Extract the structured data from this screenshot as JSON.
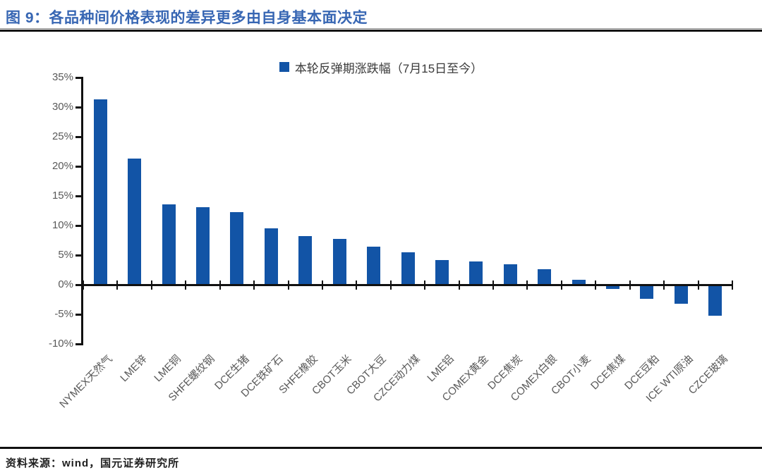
{
  "header": {
    "title": "图 9：各品种间价格表现的差异更多由自身基本面决定"
  },
  "chart_data": {
    "type": "bar",
    "legend": "本轮反弹期涨跌幅（7月15日至今）",
    "legend_position": "top-center",
    "categories": [
      "NYMEX天然气",
      "LME锌",
      "LME铜",
      "SHFE螺纹钢",
      "DCE生猪",
      "DCE铁矿石",
      "SHFE橡胶",
      "CBOT玉米",
      "CBOT大豆",
      "CZCE动力煤",
      "LME铝",
      "COMEX黄金",
      "DCE焦炭",
      "COMEX白银",
      "CBOT小麦",
      "DCE焦煤",
      "DCE豆粕",
      "ICE WTI原油",
      "CZCE玻璃"
    ],
    "values": [
      31.2,
      21.2,
      13.5,
      13.0,
      12.1,
      9.4,
      8.1,
      7.6,
      6.3,
      5.4,
      4.1,
      3.8,
      3.3,
      2.5,
      0.7,
      -0.5,
      -2.2,
      -3.0,
      -5.0
    ],
    "value_unit": "%",
    "ylim": [
      -10,
      35
    ],
    "ytick_step": 5,
    "ytick_suffix": "%",
    "grid": false,
    "bar_color": "#1254a6",
    "axis_color": "#111111",
    "tick_label_color": "#595959",
    "title_color": "#3766b3"
  },
  "footer": {
    "source": "资料来源：wind，国元证券研究所"
  }
}
